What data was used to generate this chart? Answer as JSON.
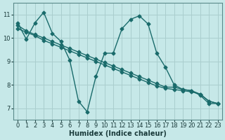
{
  "background_color": "#c6e8e8",
  "grid_color": "#aacece",
  "line_color": "#1a6b6b",
  "marker": "D",
  "markersize": 2.5,
  "linewidth": 1.0,
  "xlabel": "Humidex (Indice chaleur)",
  "xlabel_fontsize": 7,
  "tick_fontsize": 6,
  "ylim": [
    6.5,
    11.5
  ],
  "xlim": [
    -0.5,
    23.5
  ],
  "yticks": [
    7,
    8,
    9,
    10,
    11
  ],
  "xticks": [
    0,
    1,
    2,
    3,
    4,
    5,
    6,
    7,
    8,
    9,
    10,
    11,
    12,
    13,
    14,
    15,
    16,
    17,
    18,
    19,
    20,
    21,
    22,
    23
  ],
  "line1_x": [
    0,
    1,
    2,
    3,
    4,
    5,
    6,
    7,
    8,
    9,
    10,
    11,
    12,
    13,
    14,
    15,
    16,
    17,
    18,
    19,
    20,
    21,
    22,
    23
  ],
  "line1_y": [
    10.65,
    9.95,
    10.65,
    11.1,
    10.2,
    9.85,
    9.05,
    7.3,
    6.85,
    8.35,
    9.35,
    9.35,
    10.4,
    10.8,
    10.95,
    10.6,
    9.35,
    8.75,
    8.0,
    7.8,
    7.75,
    7.55,
    7.2,
    7.2
  ],
  "line2_x": [
    0,
    1,
    2,
    3,
    4,
    5,
    6,
    7,
    8,
    9,
    10,
    11,
    12,
    13,
    14,
    15,
    16,
    17,
    18,
    19,
    20,
    21,
    22,
    23
  ],
  "line2_y": [
    10.55,
    10.3,
    10.15,
    10.0,
    9.85,
    9.7,
    9.55,
    9.4,
    9.25,
    9.1,
    8.95,
    8.8,
    8.65,
    8.5,
    8.35,
    8.2,
    8.05,
    7.9,
    7.9,
    7.8,
    7.75,
    7.6,
    7.3,
    7.2
  ],
  "line3_x": [
    0,
    1,
    2,
    3,
    4,
    5,
    6,
    7,
    8,
    9,
    10,
    11,
    12,
    13,
    14,
    15,
    16,
    17,
    18,
    19,
    20,
    21,
    22,
    23
  ],
  "line3_y": [
    10.4,
    10.25,
    10.1,
    9.9,
    9.75,
    9.6,
    9.45,
    9.3,
    9.15,
    9.0,
    8.85,
    8.7,
    8.55,
    8.4,
    8.25,
    8.1,
    7.95,
    7.85,
    7.8,
    7.75,
    7.7,
    7.6,
    7.3,
    7.2
  ]
}
